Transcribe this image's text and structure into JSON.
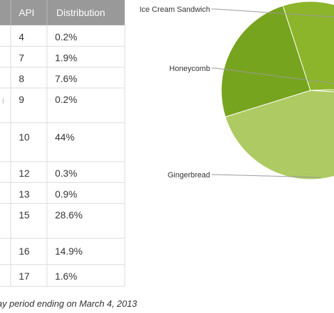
{
  "table": {
    "headers": {
      "api": "API",
      "distribution": "Distribution"
    },
    "rows": [
      {
        "api": "4",
        "distribution": "0.2%"
      },
      {
        "api": "7",
        "distribution": "1.9%"
      },
      {
        "api": "8",
        "distribution": "7.6%"
      },
      {
        "api": "9",
        "distribution": "0.2%"
      },
      {
        "api": "10",
        "distribution": "44%"
      },
      {
        "api": "12",
        "distribution": "0.3%"
      },
      {
        "api": "13",
        "distribution": "0.9%"
      },
      {
        "api": "15",
        "distribution": "28.6%"
      },
      {
        "api": "16",
        "distribution": "14.9%"
      },
      {
        "api": "17",
        "distribution": "1.6%"
      }
    ]
  },
  "footnote": "ay period ending on March 4, 2013",
  "chart_data": {
    "type": "pie",
    "slices": [
      {
        "name": "Ice Cream Sandwich",
        "value": 29.5,
        "label": "Ice Cream Sandwich",
        "color": "#8db52b"
      },
      {
        "name": "Honeycomb",
        "value": 1.5,
        "label": "Honeycomb",
        "color": "#a2c54a"
      },
      {
        "name": "Gingerbread",
        "value": 44.2,
        "label": "Gingerbread",
        "color": "#aecb63"
      },
      {
        "name": "",
        "value": 24.8,
        "label": "",
        "color": "#77a41e"
      }
    ]
  }
}
